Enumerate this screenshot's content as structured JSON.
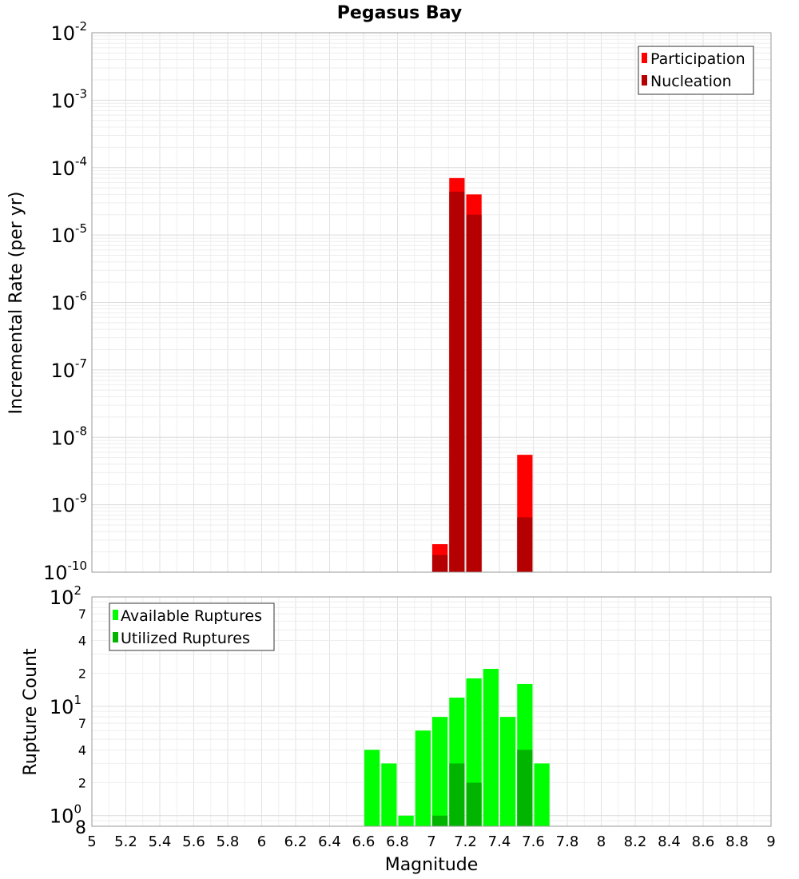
{
  "chart_data": [
    {
      "type": "bar",
      "title": "Pegasus Bay",
      "xlabel": "",
      "ylabel": "Incremental Rate (per yr)",
      "yscale": "log",
      "xlim": [
        5,
        9
      ],
      "ylim": [
        1e-10,
        0.01
      ],
      "y_tick_labels": [
        {
          "base": "10",
          "exp": "-10"
        },
        {
          "base": "10",
          "exp": "-9"
        },
        {
          "base": "10",
          "exp": "-8"
        },
        {
          "base": "10",
          "exp": "-7"
        },
        {
          "base": "10",
          "exp": "-6"
        },
        {
          "base": "10",
          "exp": "-5"
        },
        {
          "base": "10",
          "exp": "-4"
        },
        {
          "base": "10",
          "exp": "-3"
        },
        {
          "base": "10",
          "exp": "-2"
        }
      ],
      "legend_position": "top-right",
      "grid": true,
      "series": [
        {
          "name": "Participation",
          "color": "#ff0000",
          "x": [
            7.05,
            7.15,
            7.25,
            7.55
          ],
          "values": [
            2.6e-10,
            7e-05,
            4e-05,
            5.5e-09
          ]
        },
        {
          "name": "Nucleation",
          "color": "#b40000",
          "x": [
            7.05,
            7.15,
            7.25,
            7.55
          ],
          "values": [
            1.8e-10,
            4.4e-05,
            2e-05,
            6.5e-10
          ]
        }
      ]
    },
    {
      "type": "bar",
      "title": "",
      "xlabel": "Magnitude",
      "ylabel": "Rupture Count",
      "yscale": "log",
      "xlim": [
        5,
        9
      ],
      "ylim": [
        0.8,
        100
      ],
      "x_tick_labels": [
        "5",
        "5.2",
        "5.4",
        "5.6",
        "5.8",
        "6",
        "6.2",
        "6.4",
        "6.6",
        "6.8",
        "7",
        "7.2",
        "7.4",
        "7.6",
        "7.8",
        "8",
        "8.2",
        "8.4",
        "8.6",
        "8.8",
        "9"
      ],
      "y_tick_labels": [
        {
          "value": 1,
          "base": "10",
          "exp": "0"
        },
        {
          "value": 10,
          "base": "10",
          "exp": "1"
        },
        {
          "value": 100,
          "base": "10",
          "exp": "2"
        }
      ],
      "y_minor_tick_labels": [
        {
          "value": 0.8,
          "label": "8"
        },
        {
          "value": 2,
          "label": "2"
        },
        {
          "value": 4,
          "label": "4"
        },
        {
          "value": 7,
          "label": "7"
        },
        {
          "value": 20,
          "label": "2"
        },
        {
          "value": 40,
          "label": "4"
        },
        {
          "value": 70,
          "label": "7"
        }
      ],
      "legend_position": "top-left",
      "grid": true,
      "series": [
        {
          "name": "Available Ruptures",
          "color": "#00ff00",
          "x": [
            6.65,
            6.75,
            6.85,
            6.95,
            7.05,
            7.15,
            7.25,
            7.35,
            7.45,
            7.55,
            7.65
          ],
          "values": [
            4,
            3,
            1,
            6,
            8,
            12,
            18,
            22,
            8,
            16,
            3
          ]
        },
        {
          "name": "Utilized Ruptures",
          "color": "#00b400",
          "x": [
            7.05,
            7.15,
            7.25,
            7.55
          ],
          "values": [
            1,
            3,
            2,
            4
          ]
        }
      ]
    }
  ]
}
